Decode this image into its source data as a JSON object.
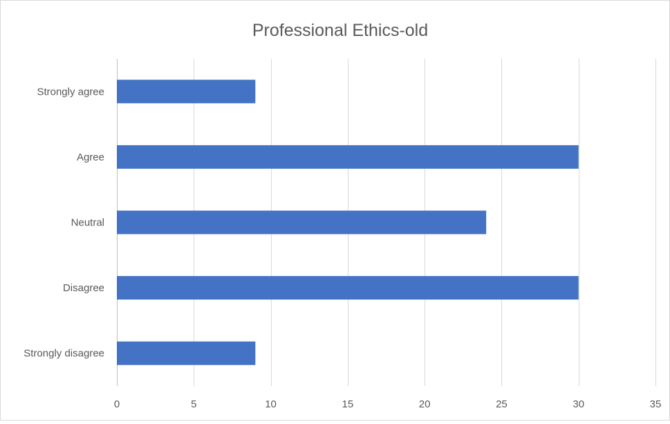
{
  "chart_data": {
    "type": "bar",
    "orientation": "horizontal",
    "title": "Professional Ethics-old",
    "categories": [
      "Strongly agree",
      "Agree",
      "Neutral",
      "Disagree",
      "Strongly disagree"
    ],
    "values": [
      9,
      30,
      24,
      30,
      9
    ],
    "xlim": [
      0,
      35
    ],
    "xticks": [
      0,
      5,
      10,
      15,
      20,
      25,
      30,
      35
    ],
    "xlabel": "",
    "ylabel": "",
    "grid": "vertical",
    "legend": "none",
    "colors": {
      "bar": "#4472c4",
      "text": "#595959",
      "grid": "#d9d9d9"
    }
  }
}
